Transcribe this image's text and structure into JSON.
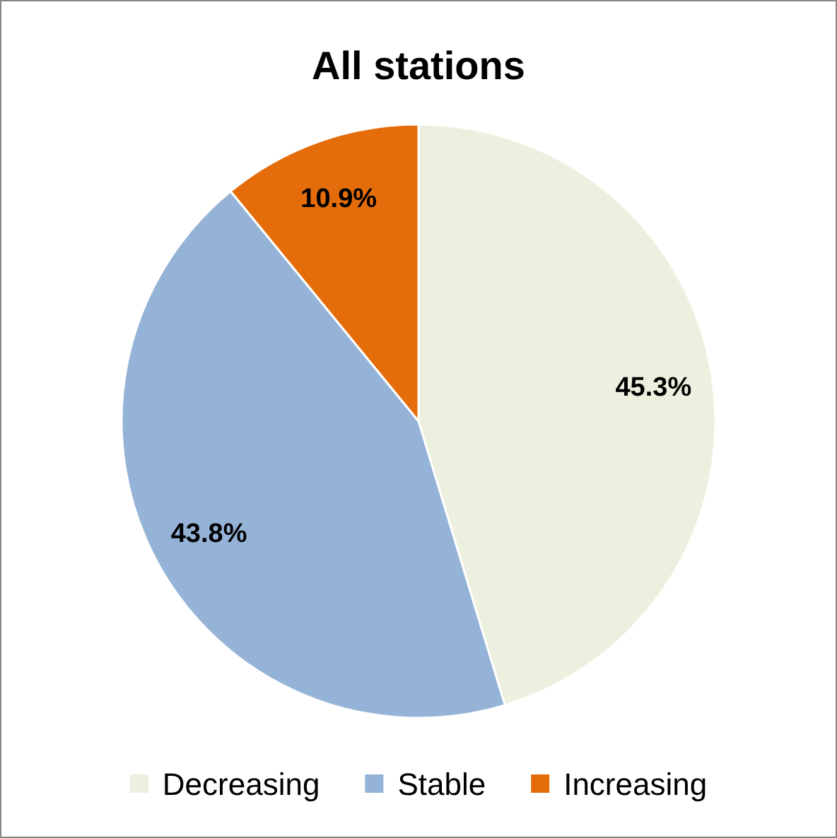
{
  "chart_data": {
    "type": "pie",
    "title": "All stations",
    "categories": [
      "Decreasing",
      "Stable",
      "Increasing"
    ],
    "values": [
      45.3,
      43.8,
      10.9
    ],
    "colors": [
      "#ebf1de",
      "#95b3d7",
      "#e46c0a"
    ],
    "value_labels": [
      "45.3%",
      "43.8%",
      "10.9%"
    ],
    "legend": "bottom"
  }
}
